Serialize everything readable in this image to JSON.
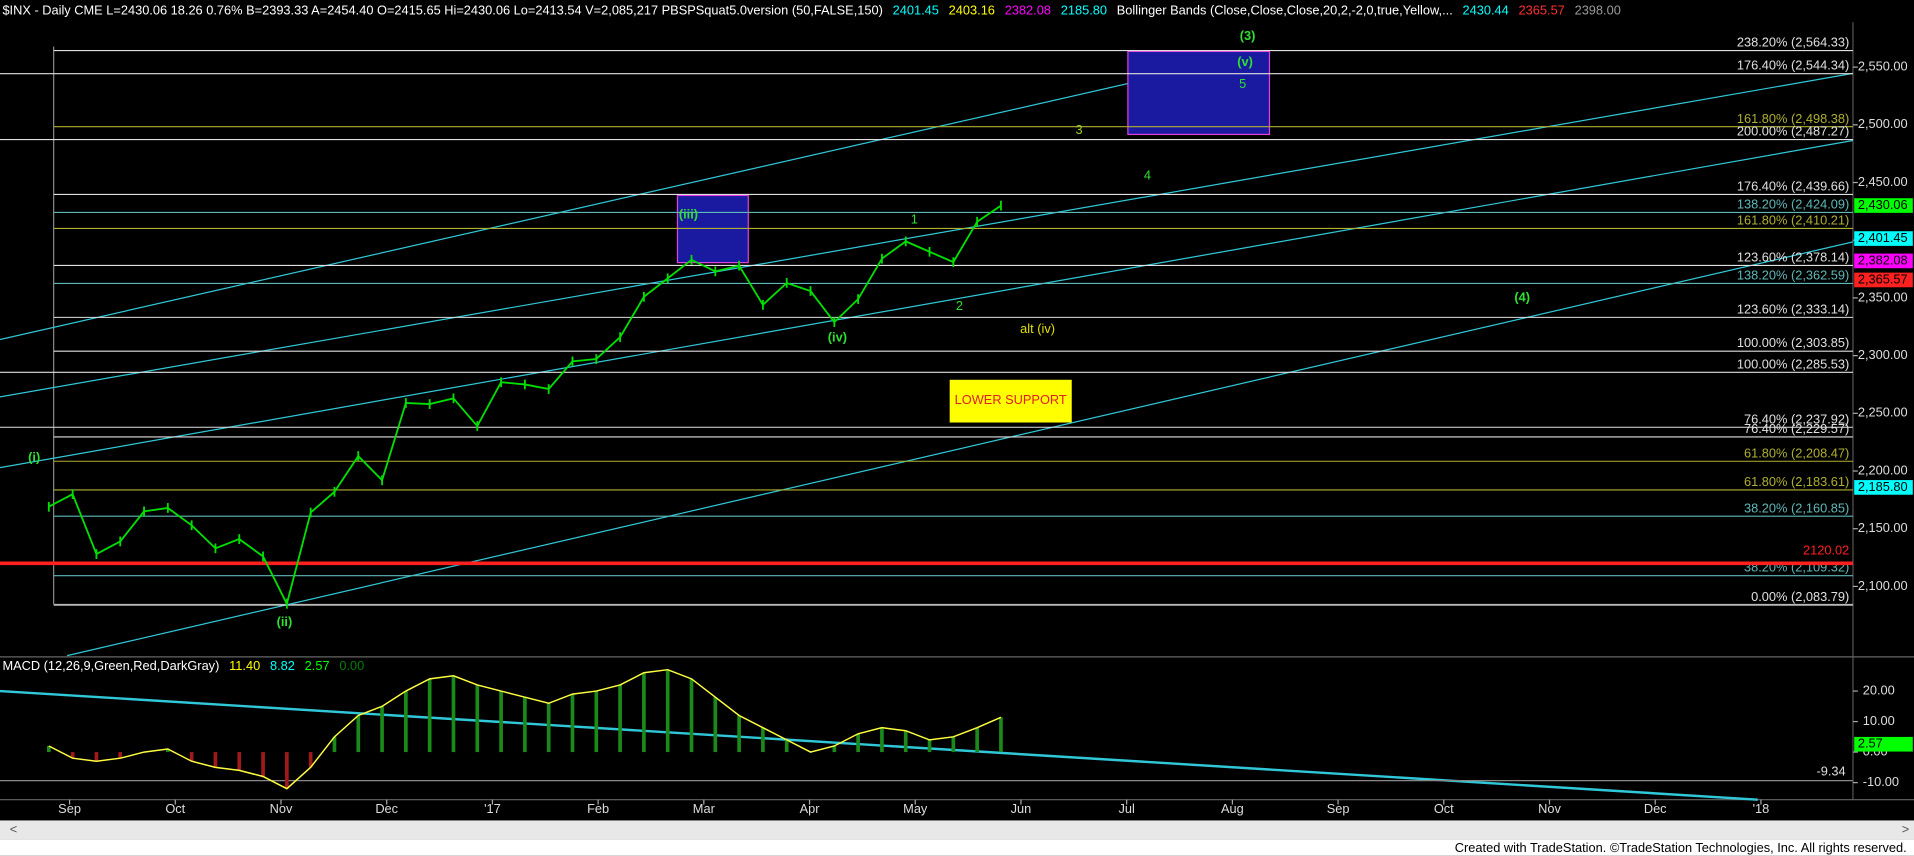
{
  "header": {
    "items": [
      {
        "text": "$INX - Daily  CME  L=2430.06  18.26  0.76%  B=2393.33  A=2454.40  O=2415.65  Hi=2430.06  Lo=2413.54  V=2,085,217  PBSPSquat5.0version (50,FALSE,150)",
        "color": "#ffffff"
      },
      {
        "text": "2401.45",
        "color": "#00ffff"
      },
      {
        "text": "2403.16",
        "color": "#ffff00"
      },
      {
        "text": "2382.08",
        "color": "#ff00ff"
      },
      {
        "text": "2185.80",
        "color": "#00ffff"
      },
      {
        "text": "Bollinger Bands (Close,Close,Close,20,2,-2,0,true,Yellow,...",
        "color": "#ffffff"
      },
      {
        "text": "2430.44",
        "color": "#00ffff"
      },
      {
        "text": "2365.57",
        "color": "#ff3030"
      },
      {
        "text": "2398.00",
        "color": "#9a9a9a"
      }
    ]
  },
  "price_panel": {
    "ylim": [
      2040,
      2589
    ],
    "yticks": [
      {
        "value": 2550,
        "label": "2,550.00"
      },
      {
        "value": 2500,
        "label": "2,500.00"
      },
      {
        "value": 2450,
        "label": "2,450.00"
      },
      {
        "value": 2400,
        "label": "2,400.00"
      },
      {
        "value": 2350,
        "label": "2,350.00"
      },
      {
        "value": 2300,
        "label": "2,300.00"
      },
      {
        "value": 2250,
        "label": "2,250.00"
      },
      {
        "value": 2200,
        "label": "2,200.00"
      },
      {
        "value": 2150,
        "label": "2,150.00"
      },
      {
        "value": 2100,
        "label": "2,100.00"
      }
    ],
    "close": [
      2169,
      2180,
      2128,
      2139,
      2165,
      2168,
      2153,
      2133,
      2141,
      2126,
      2085,
      2164,
      2182,
      2213,
      2192,
      2259,
      2258,
      2263,
      2239,
      2277,
      2275,
      2271,
      2295,
      2297,
      2316,
      2351,
      2367,
      2383,
      2373,
      2378,
      2344,
      2363,
      2356,
      2329,
      2349,
      2384,
      2399,
      2390,
      2381,
      2416,
      2430
    ],
    "close_color": "#00e000",
    "fib_levels": [
      {
        "label": "238.20% (2,564.33)",
        "value": 2564.33,
        "color": "#e0e0e0"
      },
      {
        "label": "176.40% (2,544.34)",
        "value": 2544.34,
        "color": "#e0e0e0"
      },
      {
        "label": "161.80% (2,498.38)",
        "value": 2498.38,
        "color": "#b0b030"
      },
      {
        "label": "200.00% (2,487.27)",
        "value": 2487.27,
        "color": "#e0e0e0"
      },
      {
        "label": "176.40% (2,439.66)",
        "value": 2439.66,
        "color": "#e0e0e0"
      },
      {
        "label": "138.20% (2,424.09)",
        "value": 2424.09,
        "color": "#5fb8b8"
      },
      {
        "label": "161.80% (2,410.21)",
        "value": 2410.21,
        "color": "#b0b030"
      },
      {
        "label": "123.60% (2,378.14)",
        "value": 2378.14,
        "color": "#e0e0e0"
      },
      {
        "label": "138.20% (2,362.59)",
        "value": 2362.59,
        "color": "#5fb8b8"
      },
      {
        "label": "123.60% (2,333.14)",
        "value": 2333.14,
        "color": "#e0e0e0"
      },
      {
        "label": "100.00% (2,303.85)",
        "value": 2303.85,
        "color": "#e0e0e0"
      },
      {
        "label": "100.00% (2,285.53)",
        "value": 2285.53,
        "color": "#e0e0e0"
      },
      {
        "label": "76.40% (2,237.92)",
        "value": 2237.92,
        "color": "#e0e0e0"
      },
      {
        "label": "76.40% (2,229.57)",
        "value": 2229.57,
        "color": "#e0e0e0"
      },
      {
        "label": "61.80% (2,208.47)",
        "value": 2208.47,
        "color": "#b0b030"
      },
      {
        "label": "61.80% (2,183.61)",
        "value": 2183.61,
        "color": "#b0b030"
      },
      {
        "label": "38.20% (2,160.85)",
        "value": 2160.85,
        "color": "#5fb8b8"
      },
      {
        "label": "38.20% (2,109.32)",
        "value": 2109.32,
        "color": "#5fb8b8"
      },
      {
        "label": "0.00% (2,083.79)",
        "value": 2083.79,
        "color": "#e0e0e0"
      }
    ],
    "support_line": {
      "value": 2120.02,
      "color": "#ff2020"
    },
    "value_tags": [
      {
        "value": 2430.06,
        "label": "2,430.06",
        "color": "#00ff00",
        "text_color": "#000000"
      },
      {
        "value": 2401.45,
        "label": "2,401.45",
        "color": "#00ffff",
        "text_color": "#000000"
      },
      {
        "value": 2382.08,
        "label": "2,382.08",
        "color": "#ff00ff",
        "text_color": "#000000"
      },
      {
        "value": 2365.57,
        "label": "2,365.57",
        "color": "#ff2020",
        "text_color": "#000000"
      },
      {
        "value": 2185.8,
        "label": "2,185.80",
        "color": "#00ffff",
        "text_color": "#000000"
      }
    ],
    "waves": [
      "(3)",
      "(v)",
      "5",
      "3",
      "4",
      "(iii)",
      "1",
      "2",
      "(iv)",
      "alt (iv)",
      "(4)",
      "(i)",
      "(ii)"
    ],
    "lower_support": "LOWER SUPPORT"
  },
  "macd_panel": {
    "header": [
      {
        "text": "MACD (12,26,9,Green,Red,DarkGray)",
        "color": "#ffffff"
      },
      {
        "text": "11.40",
        "color": "#ffff00"
      },
      {
        "text": "8.82",
        "color": "#00ffff"
      },
      {
        "text": "2.57",
        "color": "#00ff00"
      },
      {
        "text": "0.00",
        "color": "#008000"
      }
    ],
    "ylim": [
      -15.6,
      30
    ],
    "yticks": [
      {
        "value": 20,
        "label": "20.00"
      },
      {
        "value": 10,
        "label": "10.00"
      },
      {
        "value": 0,
        "label": "0.00"
      },
      {
        "value": -10,
        "label": "-10.00"
      }
    ],
    "macd": [
      2,
      -2,
      -3,
      -2,
      0,
      1,
      -3,
      -5,
      -6,
      -8,
      -12,
      -5,
      5,
      12,
      15,
      20,
      24,
      25,
      22,
      20,
      18,
      16,
      19,
      20,
      22,
      26,
      27,
      24,
      18,
      12,
      8,
      4,
      0,
      2,
      6,
      8,
      7,
      4,
      5,
      8,
      11.4
    ],
    "macd_color": "#ffff40",
    "tag": {
      "value": 2.57,
      "label": "2.57",
      "color": "#00ff00"
    },
    "level": {
      "value": -9.34,
      "label": "-9.34"
    }
  },
  "time_axis": [
    "Sep",
    "Oct",
    "Nov",
    "Dec",
    "'17",
    "Feb",
    "Mar",
    "Apr",
    "May",
    "Jun",
    "Jul",
    "Aug",
    "Sep",
    "Oct",
    "Nov",
    "Dec",
    "'18"
  ],
  "footer": "Created with TradeStation. ©TradeStation Technologies, Inc. All rights reserved."
}
